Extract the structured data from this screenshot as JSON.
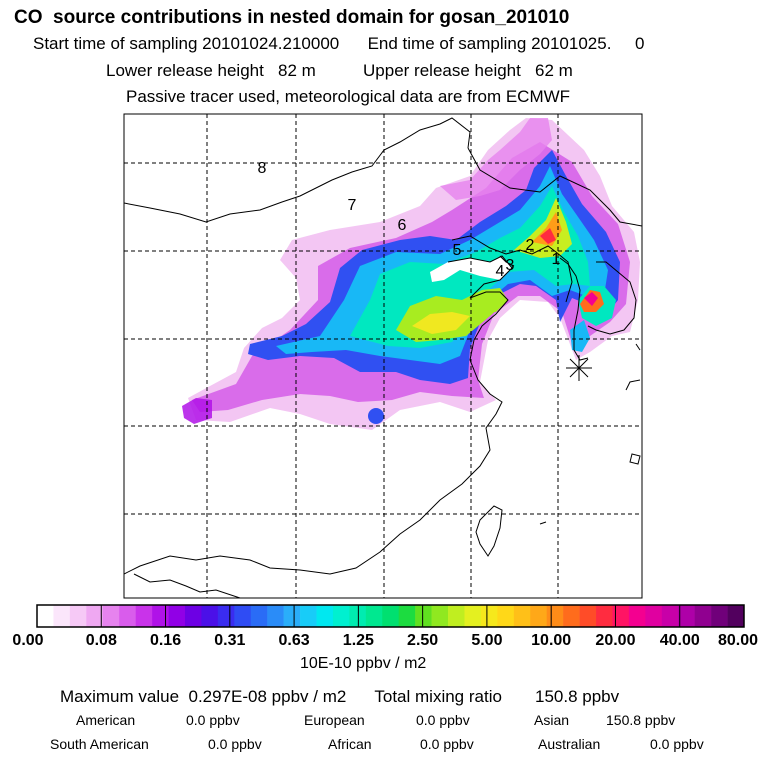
{
  "header": {
    "title": "CO  source contributions in nested domain for gosan_201010",
    "start_label": "Start time of sampling",
    "start_value": "20101024.210000",
    "end_label": "End time of sampling",
    "end_value": "20101025.     0",
    "lower_label": "Lower release height",
    "lower_value": "82 m",
    "upper_label": "Upper release height",
    "upper_value": "62 m",
    "note": "Passive tracer used, meteorological data are from ECMWF"
  },
  "map": {
    "region_labels": [
      "1",
      "2",
      "3",
      "4",
      "5",
      "6",
      "7",
      "8"
    ],
    "receptor_icon": "asterisk-icon"
  },
  "colorbar": {
    "ticks": [
      "0.00",
      "0.08",
      "0.16",
      "0.31",
      "0.63",
      "1.25",
      "2.50",
      "5.00",
      "10.00",
      "20.00",
      "40.00",
      "80.00"
    ],
    "colors": [
      "#ffffff",
      "#fbe6fb",
      "#f6c9f6",
      "#efa8f2",
      "#e683ee",
      "#d95cec",
      "#c933ea",
      "#b012e8",
      "#9100e6",
      "#6d00e4",
      "#4b10e8",
      "#3a2cf0",
      "#2f4cf4",
      "#2a6cf6",
      "#2a8cf8",
      "#2aaefa",
      "#18ccf8",
      "#00e8f0",
      "#00f0d0",
      "#00ecb0",
      "#00e890",
      "#00e070",
      "#1cdc40",
      "#60e020",
      "#90e820",
      "#c0ee20",
      "#e4f020",
      "#f6e81c",
      "#ffd818",
      "#ffc018",
      "#ffa818",
      "#ff8c18",
      "#ff6c1c",
      "#ff4c28",
      "#ff2c40",
      "#ff1464",
      "#f40090",
      "#e000a0",
      "#c800a8",
      "#ae00a8",
      "#900090",
      "#70007a",
      "#52005e"
    ],
    "units": "10E-10 ppbv / m2"
  },
  "stats": {
    "max_label": "Maximum value",
    "max_value": "0.297E-08 ppbv / m2",
    "total_label": "Total mixing ratio",
    "total_value": "150.8 ppbv",
    "american_label": "American",
    "american_value": "0.0 ppbv",
    "european_label": "European",
    "european_value": "0.0 ppbv",
    "asian_label": "Asian",
    "asian_value": "150.8 ppbv",
    "south_american_label": "South American",
    "south_american_value": "0.0 ppbv",
    "african_label": "African",
    "african_value": "0.0 ppbv",
    "australian_label": "Australian",
    "australian_value": "0.0 ppbv"
  }
}
